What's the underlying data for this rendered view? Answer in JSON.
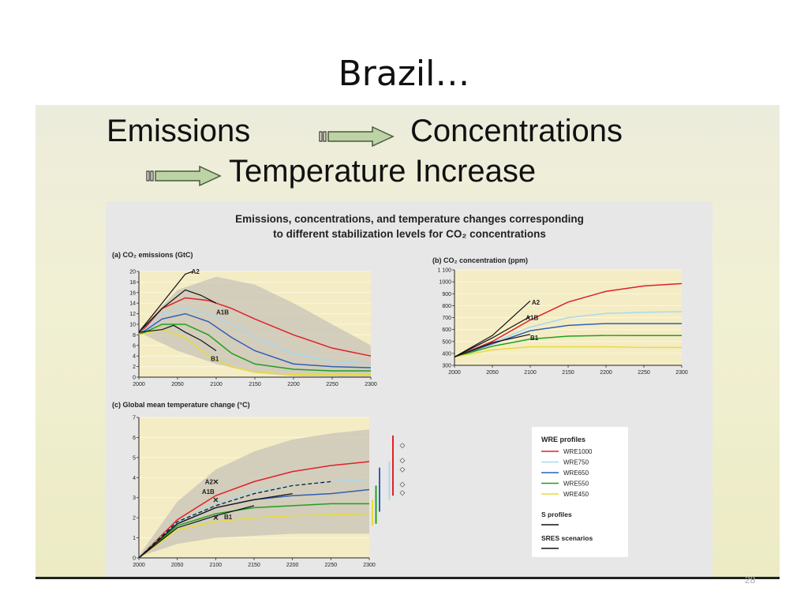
{
  "slide": {
    "title": "Brazil…",
    "page_number": "28",
    "heading_line1_left": "Emissions",
    "heading_line1_right": "Concentrations",
    "heading_line2": "Temperature Increase"
  },
  "colors": {
    "wre1000": "#e0202a",
    "wre750": "#a8d8ee",
    "wre650": "#2f5fb8",
    "wre550": "#1fa01f",
    "wre450": "#e8dc38",
    "uncertainty": "#c8c3b8",
    "plot_bg": "#f4ecc4"
  },
  "chart_data": [
    {
      "id": "a",
      "type": "line",
      "figure_title_line1": "Emissions, concentrations, and temperature changes corresponding",
      "figure_title_line2": "to different stabilization levels for CO₂ concentrations",
      "title": "(a) CO₂ emissions (GtC)",
      "xlim": [
        2000,
        2300
      ],
      "ylim": [
        0,
        20
      ],
      "xticks": [
        "2000",
        "2050",
        "2100",
        "2150",
        "2200",
        "2250",
        "2300"
      ],
      "yticks": [
        "0",
        "2",
        "4",
        "6",
        "8",
        "10",
        "12",
        "14",
        "16",
        "18",
        "20"
      ],
      "band": {
        "x": [
          2000,
          2050,
          2100,
          2150,
          2200,
          2250,
          2300
        ],
        "upper": [
          9,
          16.5,
          19,
          17.5,
          14,
          10,
          6
        ],
        "lower": [
          8.5,
          5,
          2.5,
          0.8,
          0.2,
          0.1,
          0
        ]
      },
      "series": [
        {
          "key": "wre1000",
          "x": [
            2000,
            2030,
            2060,
            2090,
            2120,
            2150,
            2200,
            2250,
            2300
          ],
          "values": [
            8,
            13,
            15,
            14.5,
            13,
            11,
            8,
            5.5,
            4
          ]
        },
        {
          "key": "wre750",
          "x": [
            2000,
            2030,
            2060,
            2090,
            2120,
            2150,
            2200,
            2250,
            2300
          ],
          "values": [
            8,
            12,
            13,
            12,
            10,
            7.5,
            4.5,
            3,
            2.5
          ]
        },
        {
          "key": "wre650",
          "x": [
            2000,
            2030,
            2060,
            2090,
            2120,
            2150,
            2200,
            2250,
            2300
          ],
          "values": [
            8,
            11,
            12,
            10.5,
            7.5,
            5,
            2.5,
            2,
            1.8
          ]
        },
        {
          "key": "wre550",
          "x": [
            2000,
            2030,
            2060,
            2090,
            2120,
            2150,
            2200,
            2250,
            2300
          ],
          "values": [
            8,
            10,
            10,
            8,
            4.5,
            2.5,
            1.5,
            1.2,
            1.2
          ]
        },
        {
          "key": "wre450",
          "x": [
            2000,
            2030,
            2060,
            2090,
            2120,
            2150,
            2200,
            2250,
            2300
          ],
          "values": [
            8,
            9,
            7.5,
            4,
            2,
            1,
            0.5,
            0.5,
            0.5
          ]
        }
      ],
      "black_lines": [
        {
          "x": [
            2000,
            2030,
            2060,
            2070
          ],
          "values": [
            8.5,
            14,
            19.5,
            20
          ]
        },
        {
          "x": [
            2000,
            2030,
            2060,
            2080,
            2100
          ],
          "values": [
            8.5,
            13,
            16.5,
            15.5,
            14
          ]
        },
        {
          "x": [
            2000,
            2030,
            2045,
            2060,
            2080,
            2100
          ],
          "values": [
            8.5,
            9,
            9.8,
            8.5,
            7,
            5
          ]
        }
      ],
      "annotations": [
        {
          "text": "A2",
          "x": 2068,
          "y": 20
        },
        {
          "text": "A1B",
          "x": 2100,
          "y": 12.3
        },
        {
          "text": "B1",
          "x": 2093,
          "y": 3.5
        }
      ]
    },
    {
      "id": "b",
      "type": "line",
      "title": "(b) CO₂ concentration (ppm)",
      "xlim": [
        2000,
        2300
      ],
      "ylim": [
        300,
        1100
      ],
      "xticks": [
        "2000",
        "2050",
        "2100",
        "2150",
        "2200",
        "2250",
        "2300"
      ],
      "yticks": [
        "300",
        "400",
        "500",
        "600",
        "700",
        "800",
        "900",
        "1000",
        "1 100"
      ],
      "series": [
        {
          "key": "wre1000",
          "x": [
            2000,
            2050,
            2100,
            2150,
            2200,
            2250,
            2300
          ],
          "values": [
            370,
            500,
            680,
            830,
            920,
            965,
            985
          ]
        },
        {
          "key": "wre750",
          "x": [
            2000,
            2050,
            2100,
            2150,
            2200,
            2250,
            2300
          ],
          "values": [
            370,
            490,
            620,
            700,
            735,
            745,
            750
          ]
        },
        {
          "key": "wre650",
          "x": [
            2000,
            2050,
            2100,
            2150,
            2200,
            2250,
            2300
          ],
          "values": [
            370,
            480,
            590,
            635,
            650,
            650,
            650
          ]
        },
        {
          "key": "wre550",
          "x": [
            2000,
            2050,
            2100,
            2150,
            2200,
            2250,
            2300
          ],
          "values": [
            370,
            460,
            520,
            545,
            550,
            550,
            550
          ]
        },
        {
          "key": "wre450",
          "x": [
            2000,
            2050,
            2100,
            2150,
            2200,
            2250,
            2300
          ],
          "values": [
            370,
            430,
            455,
            455,
            455,
            450,
            450
          ]
        }
      ],
      "black_lines": [
        {
          "x": [
            2000,
            2050,
            2100
          ],
          "values": [
            370,
            550,
            840
          ]
        },
        {
          "x": [
            2000,
            2050,
            2100
          ],
          "values": [
            370,
            530,
            710
          ]
        },
        {
          "x": [
            2000,
            2050,
            2100
          ],
          "values": [
            370,
            490,
            560
          ]
        }
      ],
      "annotations": [
        {
          "text": "A2",
          "x": 2102,
          "y": 830
        },
        {
          "text": "A1B",
          "x": 2094,
          "y": 700
        },
        {
          "text": "B1",
          "x": 2100,
          "y": 530
        }
      ]
    },
    {
      "id": "c",
      "type": "line",
      "title": "(c) Global mean temperature change (°C)",
      "xlim": [
        2000,
        2300
      ],
      "ylim": [
        0,
        7
      ],
      "xticks": [
        "2000",
        "2050",
        "2100",
        "2150",
        "2200",
        "2250",
        "2300"
      ],
      "yticks": [
        "0",
        "1",
        "2",
        "3",
        "4",
        "5",
        "6",
        "7"
      ],
      "band": {
        "x": [
          2000,
          2050,
          2100,
          2150,
          2200,
          2250,
          2300
        ],
        "upper": [
          0.1,
          2.8,
          4.4,
          5.3,
          5.9,
          6.2,
          6.4
        ],
        "lower": [
          0.05,
          0.7,
          1,
          1.1,
          1.2,
          1.2,
          1.2
        ]
      },
      "series": [
        {
          "key": "wre1000",
          "x": [
            2000,
            2050,
            2100,
            2150,
            2200,
            2250,
            2300
          ],
          "values": [
            0,
            1.9,
            3.1,
            3.8,
            4.3,
            4.6,
            4.8
          ]
        },
        {
          "key": "wre750",
          "x": [
            2000,
            2050,
            2100,
            2150,
            2200,
            2250,
            2300
          ],
          "values": [
            0,
            1.8,
            2.7,
            3.3,
            3.6,
            3.8,
            3.9
          ]
        },
        {
          "key": "wre650",
          "x": [
            2000,
            2050,
            2100,
            2150,
            2200,
            2250,
            2300
          ],
          "values": [
            0,
            1.7,
            2.5,
            2.9,
            3.1,
            3.2,
            3.4
          ]
        },
        {
          "key": "wre550",
          "x": [
            2000,
            2050,
            2100,
            2150,
            2200,
            2250,
            2300
          ],
          "values": [
            0,
            1.6,
            2.2,
            2.5,
            2.6,
            2.7,
            2.7
          ]
        },
        {
          "key": "wre450",
          "x": [
            2000,
            2050,
            2100,
            2150,
            2200,
            2250,
            2300
          ],
          "values": [
            0,
            1.4,
            1.8,
            2,
            2.1,
            2.15,
            2.2
          ]
        }
      ],
      "black_lines": [
        {
          "x": [
            2000,
            2050,
            2100,
            2150,
            2200,
            2250
          ],
          "values": [
            0,
            1.8,
            2.6,
            3.2,
            3.6,
            3.8
          ],
          "dashed": true
        },
        {
          "x": [
            2000,
            2050,
            2100,
            2150,
            2200
          ],
          "values": [
            0,
            1.7,
            2.5,
            2.9,
            3.2
          ]
        },
        {
          "x": [
            2000,
            2050,
            2100,
            2150
          ],
          "values": [
            0,
            1.5,
            2.1,
            2.6
          ]
        }
      ],
      "markers": [
        {
          "key": "wre1000",
          "symbol": "×",
          "x": 2100,
          "y": 3.8
        },
        {
          "key": "wre1000",
          "symbol": "×",
          "x": 2100,
          "y": 2.9
        },
        {
          "key": "wre1000",
          "symbol": "×",
          "x": 2100,
          "y": 2
        }
      ],
      "annotations": [
        {
          "text": "A2",
          "x": 2086,
          "y": 3.8
        },
        {
          "text": "A1B",
          "x": 2082,
          "y": 3.3
        },
        {
          "text": "B1",
          "x": 2111,
          "y": 2.05
        }
      ],
      "range_bars": [
        {
          "key": "wre1000",
          "low": 3.1,
          "high": 6.1
        },
        {
          "key": "wre750",
          "low": 2.9,
          "high": 4.8
        },
        {
          "key": "wre650",
          "low": 2.3,
          "high": 4.5
        },
        {
          "key": "wre550",
          "low": 1.7,
          "high": 3.6
        },
        {
          "key": "wre450",
          "low": 1.6,
          "high": 2.9
        }
      ],
      "legend": {
        "title": "WRE profiles",
        "entries": [
          {
            "key": "wre1000",
            "label": "WRE1000"
          },
          {
            "key": "wre750",
            "label": "WRE750"
          },
          {
            "key": "wre650",
            "label": "WRE650"
          },
          {
            "key": "wre550",
            "label": "WRE550"
          },
          {
            "key": "wre450",
            "label": "WRE450"
          }
        ],
        "s_profiles": "S profiles",
        "sres": "SRES scenarios"
      }
    }
  ]
}
